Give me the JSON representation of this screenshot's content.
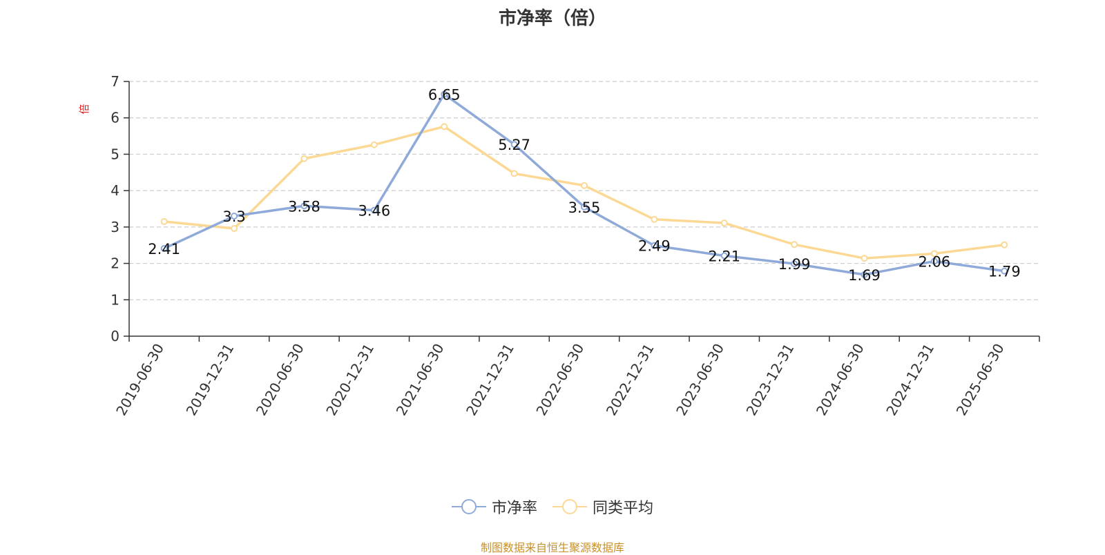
{
  "title": "市净率（倍）",
  "source": "制图数据来自恒生聚源数据库",
  "colors": {
    "series1": "#8faad9",
    "series2": "#fbd994",
    "axis": "#333333",
    "grid": "#cccccc",
    "unit": "#e02020"
  },
  "chart_data": {
    "type": "line",
    "title": "市净率（倍）",
    "ylabel": "倍",
    "xlabel": "",
    "ylim": [
      0,
      7
    ],
    "yticks": [
      0,
      1,
      2,
      3,
      4,
      5,
      6,
      7
    ],
    "grid": true,
    "legend_position": "bottom-center",
    "categories": [
      "2019-06-30",
      "2019-12-31",
      "2020-06-30",
      "2020-12-31",
      "2021-06-30",
      "2021-12-31",
      "2022-06-30",
      "2022-12-31",
      "2023-06-30",
      "2023-12-31",
      "2024-06-30",
      "2024-12-31",
      "2025-06-30"
    ],
    "series": [
      {
        "name": "市净率",
        "values": [
          2.41,
          3.3,
          3.58,
          3.46,
          6.65,
          5.27,
          3.55,
          2.49,
          2.21,
          1.99,
          1.69,
          2.06,
          1.79
        ],
        "labels": [
          "2.41",
          "3.3",
          "3.58",
          "3.46",
          "6.65",
          "5.27",
          "3.55",
          "2.49",
          "2.21",
          "1.99",
          "1.69",
          "2.06",
          "1.79"
        ]
      },
      {
        "name": "同类平均",
        "values": [
          3.15,
          2.96,
          4.88,
          5.26,
          5.76,
          4.47,
          4.14,
          3.21,
          3.11,
          2.52,
          2.14,
          2.27,
          2.51
        ]
      }
    ]
  }
}
